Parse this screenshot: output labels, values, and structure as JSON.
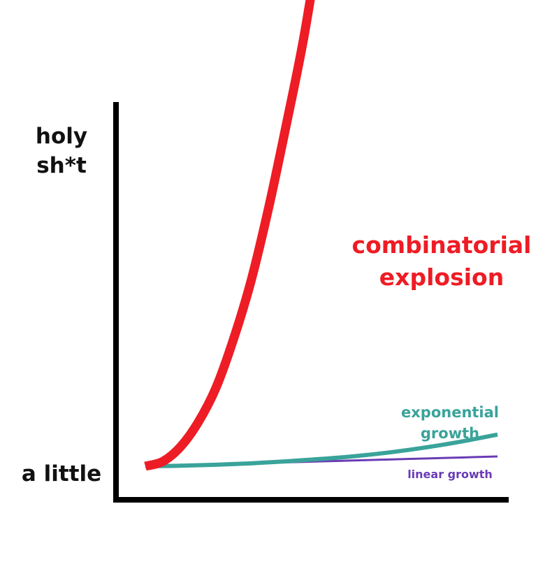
{
  "chart_data": {
    "type": "line",
    "title": "",
    "xlabel": "",
    "ylabel": "",
    "y_tick_labels": [
      {
        "lines": [
          "holy",
          "sh*t"
        ],
        "value": 1
      },
      {
        "lines": [
          "a little"
        ],
        "value": 0
      }
    ],
    "x": [
      0,
      0.1,
      0.2,
      0.3,
      0.4,
      0.5,
      0.6,
      0.7,
      0.8,
      0.9,
      1
    ],
    "xlim": [
      0,
      1
    ],
    "ylim": [
      0,
      1
    ],
    "grid": false,
    "legend": "none",
    "series": [
      {
        "name": "combinatorial explosion",
        "label_lines": [
          "combinatorial",
          "explosion"
        ],
        "color": "#ee1c25",
        "x": [
          0,
          0.05,
          0.1,
          0.15,
          0.2,
          0.25,
          0.3,
          0.35,
          0.4,
          0.45,
          0.5
        ],
        "values": [
          0,
          0.01,
          0.04,
          0.09,
          0.16,
          0.26,
          0.38,
          0.53,
          0.7,
          0.88,
          1.1
        ]
      },
      {
        "name": "exponential growth",
        "label_lines": [
          "exponential",
          "growth"
        ],
        "color": "#3aa39a",
        "values": [
          0,
          0.001,
          0.003,
          0.006,
          0.01,
          0.015,
          0.021,
          0.029,
          0.039,
          0.051,
          0.065
        ]
      },
      {
        "name": "linear growth",
        "label_lines": [
          "linear growth"
        ],
        "color": "#6a3bb5",
        "values": [
          0,
          0.002,
          0.004,
          0.006,
          0.008,
          0.01,
          0.012,
          0.014,
          0.016,
          0.018,
          0.02
        ]
      }
    ]
  }
}
